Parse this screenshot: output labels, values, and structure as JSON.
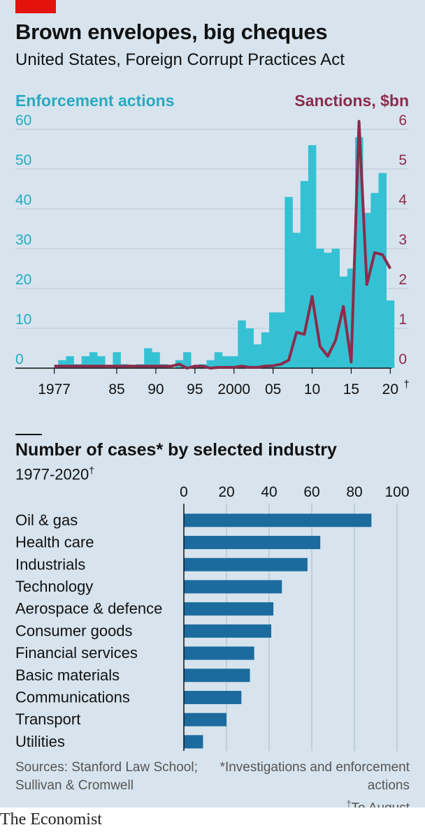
{
  "title": "Brown envelopes, big cheques",
  "subtitle": "United States, Foreign Corrupt Practices Act",
  "colors": {
    "bars": "#35c1d4",
    "line": "#8b2c4b",
    "industry_bars": "#1c6b9e",
    "axis_left": "#29a9c0",
    "axis_right": "#8b2c4b"
  },
  "chart_data": [
    {
      "type": "bar",
      "left_axis_label": "Enforcement actions",
      "right_axis_label": "Sanctions, $bn",
      "left_ticks": [
        "0",
        "10",
        "20",
        "30",
        "40",
        "50",
        "60"
      ],
      "right_ticks": [
        "0",
        "1",
        "2",
        "3",
        "4",
        "5",
        "6"
      ],
      "x_tick_labels": [
        {
          "year": 1977,
          "label": "1977"
        },
        {
          "year": 1985,
          "label": "85"
        },
        {
          "year": 1990,
          "label": "90"
        },
        {
          "year": 1995,
          "label": "95"
        },
        {
          "year": 2000,
          "label": "2000"
        },
        {
          "year": 2005,
          "label": "05"
        },
        {
          "year": 2010,
          "label": "10"
        },
        {
          "year": 2015,
          "label": "15"
        },
        {
          "year": 2020,
          "label": "20",
          "marker": "†"
        }
      ],
      "ylim_left": [
        0,
        60
      ],
      "ylim_right": [
        0,
        6
      ],
      "years": [
        1977,
        1978,
        1979,
        1980,
        1981,
        1982,
        1983,
        1984,
        1985,
        1986,
        1987,
        1988,
        1989,
        1990,
        1991,
        1992,
        1993,
        1994,
        1995,
        1996,
        1997,
        1998,
        1999,
        2000,
        2001,
        2002,
        2003,
        2004,
        2005,
        2006,
        2007,
        2008,
        2009,
        2010,
        2011,
        2012,
        2013,
        2014,
        2015,
        2016,
        2017,
        2018,
        2019,
        2020
      ],
      "series": [
        {
          "type": "bar",
          "values": [
            0,
            2,
            3,
            1,
            3,
            4,
            3,
            0,
            4,
            1,
            0,
            1,
            5,
            4,
            1,
            0,
            2,
            4,
            0,
            1,
            2,
            4,
            3,
            3,
            12,
            10,
            6,
            9,
            14,
            14,
            43,
            34,
            47,
            56,
            30,
            29,
            30,
            23,
            25,
            58,
            39,
            44,
            49,
            17
          ]
        },
        {
          "type": "line",
          "values": [
            0.05,
            0.05,
            0.05,
            0.05,
            0.05,
            0.05,
            0.05,
            0.05,
            0.05,
            0.05,
            0.05,
            0.05,
            0.05,
            0.05,
            0.05,
            0.05,
            0.1,
            0,
            0.05,
            0.05,
            0,
            0.02,
            0.02,
            0.02,
            0.05,
            0.02,
            0.02,
            0.05,
            0.06,
            0.1,
            0.2,
            0.9,
            0.85,
            1.8,
            0.55,
            0.3,
            0.7,
            1.55,
            0.15,
            6.2,
            2.1,
            2.9,
            2.85,
            2.5
          ]
        }
      ]
    },
    {
      "type": "bar",
      "orientation": "horizontal",
      "title": "Number of cases* by selected industry",
      "subtitle": "1977-2020",
      "subtitle_marker": "†",
      "xlim": [
        0,
        100
      ],
      "x_ticks": [
        "0",
        "20",
        "40",
        "60",
        "80",
        "100"
      ],
      "categories": [
        "Oil & gas",
        "Health care",
        "Industrials",
        "Technology",
        "Aerospace & defence",
        "Consumer goods",
        "Financial services",
        "Basic materials",
        "Communications",
        "Transport",
        "Utilities"
      ],
      "values": [
        88,
        64,
        58,
        46,
        42,
        41,
        33,
        31,
        27,
        20,
        9
      ]
    }
  ],
  "footer": {
    "sources": "Sources: Stanford Law School; Sullivan & Cromwell",
    "note1": "*Investigations and enforcement actions",
    "note2_marker": "†",
    "note2": "To August",
    "brand": "The Economist"
  }
}
